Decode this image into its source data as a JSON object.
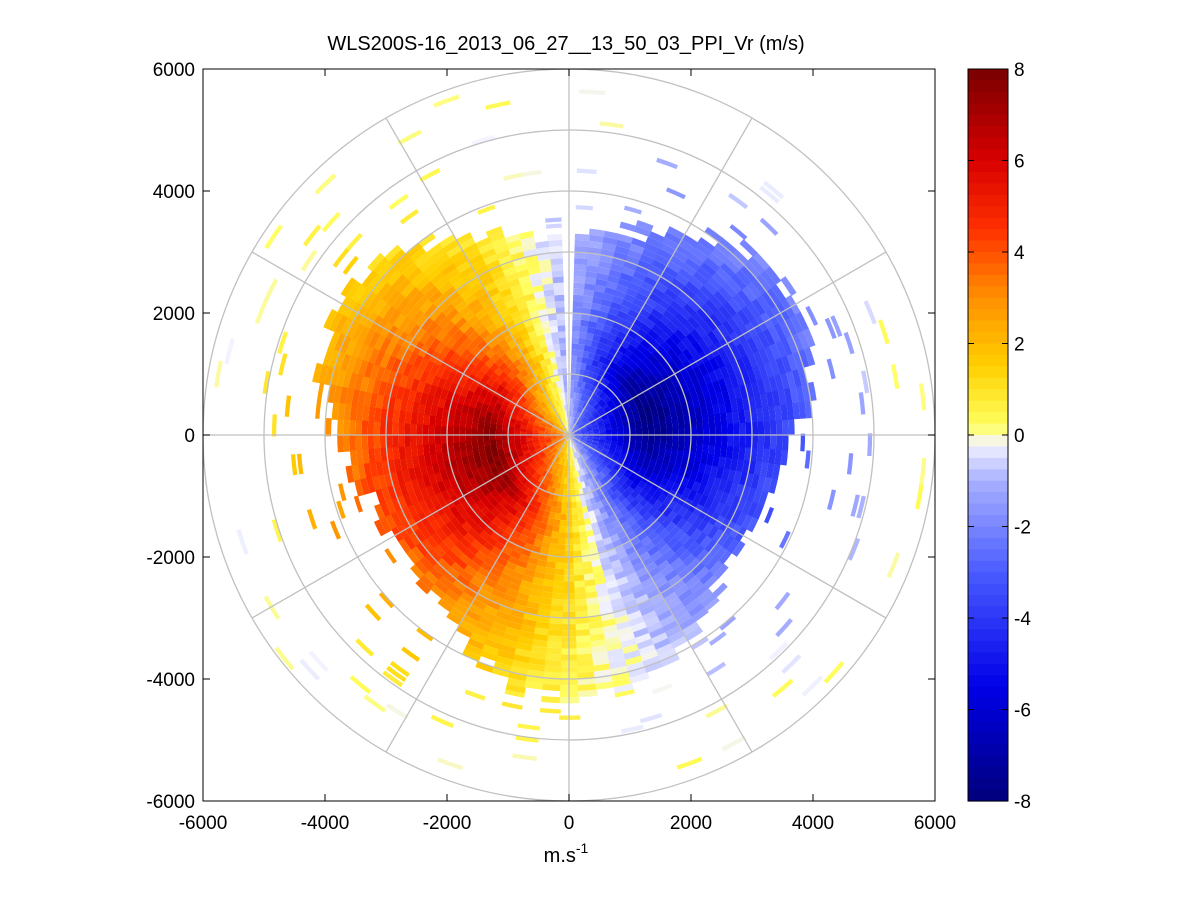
{
  "chart_data": {
    "type": "heatmap",
    "subtype": "polar-ppi",
    "title": "WLS200S-16_2013_06_27__13_50_03_PPI_Vr (m/s)",
    "xlabel_base": "m.s",
    "xlabel_exp": "-1",
    "ylabel": "",
    "xlim": [
      -6000,
      6000
    ],
    "ylim": [
      -6000,
      6000
    ],
    "x_ticks": [
      -6000,
      -4000,
      -2000,
      0,
      2000,
      4000,
      6000
    ],
    "y_ticks": [
      6000,
      4000,
      2000,
      0,
      -2000,
      -4000,
      -6000
    ],
    "x_tick_labels": [
      "-6000",
      "-4000",
      "-2000",
      "0",
      "2000",
      "4000",
      "6000"
    ],
    "y_tick_labels": [
      "6000",
      "4000",
      "2000",
      "0",
      "-2000",
      "-4000",
      "-6000"
    ],
    "polar_grid": {
      "rings": [
        1000,
        2000,
        3000,
        4000,
        5000,
        6000
      ],
      "spokes_deg": [
        0,
        30,
        60,
        90,
        120,
        150,
        180,
        210,
        240,
        270,
        300,
        330
      ],
      "color": "#c0c0c0"
    },
    "colorbar": {
      "min": -8,
      "max": 8,
      "ticks": [
        8,
        6,
        4,
        2,
        0,
        -2,
        -4,
        -6,
        -8
      ],
      "tick_labels": [
        "8",
        "6",
        "4",
        "2",
        "0",
        "-2",
        "-4",
        "-6",
        "-8"
      ],
      "colormap": "blue-white-yellow-red",
      "stops": [
        {
          "v": -8,
          "color": "#00007a"
        },
        {
          "v": -5.5,
          "color": "#0000e8"
        },
        {
          "v": -3,
          "color": "#4a5cff"
        },
        {
          "v": -1,
          "color": "#a8b0ff"
        },
        {
          "v": -0.2,
          "color": "#f4f4ff"
        },
        {
          "v": 0.2,
          "color": "#ffff60"
        },
        {
          "v": 1.5,
          "color": "#ffd000"
        },
        {
          "v": 3,
          "color": "#ff9000"
        },
        {
          "v": 4.5,
          "color": "#ff3000"
        },
        {
          "v": 6,
          "color": "#d80000"
        },
        {
          "v": 8,
          "color": "#780000"
        }
      ]
    },
    "field": {
      "description": "Radial velocity (m/s) on a polar grid; angle = math angle from +x axis",
      "peak_positive": 8,
      "peak_negative": -8,
      "sector_gap_deg": [
        88,
        92
      ],
      "main_range_max": 4000,
      "sparse_range_max": 6000
    }
  },
  "colors": {
    "axis": "#000000",
    "grid": "#c0c0c0",
    "background": "#ffffff"
  }
}
